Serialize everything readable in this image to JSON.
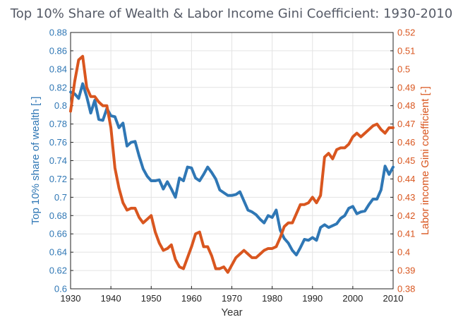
{
  "chart_data": {
    "type": "line",
    "title": "Top 10% Share of Wealth & Labor Income Gini Coefficient: 1930-2010",
    "xlabel": "Year",
    "ylabel_left": "Top 10% share of wealth [-]",
    "ylabel_right": "Labor income Gini coefficient [-]",
    "xlim": [
      1930,
      2010
    ],
    "ylim_left": [
      0.6,
      0.88
    ],
    "ylim_right": [
      0.38,
      0.52
    ],
    "grid": true,
    "x_ticks": [
      "1930",
      "1940",
      "1950",
      "1960",
      "1970",
      "1980",
      "1990",
      "2000",
      "2010"
    ],
    "y_ticks_left": [
      "0.6",
      "0.62",
      "0.64",
      "0.66",
      "0.68",
      "0.7",
      "0.72",
      "0.74",
      "0.76",
      "0.78",
      "0.8",
      "0.82",
      "0.84",
      "0.86",
      "0.88"
    ],
    "y_ticks_right": [
      "0.38",
      "0.39",
      "0.4",
      "0.41",
      "0.42",
      "0.43",
      "0.44",
      "0.45",
      "0.46",
      "0.47",
      "0.48",
      "0.49",
      "0.5",
      "0.51",
      "0.52"
    ],
    "colors": {
      "left_series": "#2f77b5",
      "right_series": "#d9561f",
      "grid": "#e3e3e3"
    },
    "series": [
      {
        "axis": "left",
        "x": [
          1930,
          1931,
          1932,
          1933,
          1934,
          1935,
          1936,
          1937,
          1938,
          1939,
          1940,
          1941,
          1942,
          1943,
          1944,
          1945,
          1946,
          1947,
          1948,
          1949,
          1950,
          1951,
          1952,
          1953,
          1954,
          1955,
          1956,
          1957,
          1958,
          1959,
          1960,
          1961,
          1962,
          1963,
          1964,
          1965,
          1966,
          1967,
          1968,
          1969,
          1970,
          1971,
          1972,
          1973,
          1974,
          1975,
          1976,
          1977,
          1978,
          1979,
          1980,
          1981,
          1982,
          1983,
          1984,
          1985,
          1986,
          1987,
          1988,
          1989,
          1990,
          1991,
          1992,
          1993,
          1994,
          1995,
          1996,
          1997,
          1998,
          1999,
          2000,
          2001,
          2002,
          2003,
          2004,
          2005,
          2006,
          2007,
          2008,
          2009,
          2010
        ],
        "y": [
          0.815,
          0.813,
          0.808,
          0.824,
          0.81,
          0.792,
          0.806,
          0.785,
          0.784,
          0.797,
          0.789,
          0.788,
          0.776,
          0.781,
          0.756,
          0.76,
          0.761,
          0.745,
          0.731,
          0.723,
          0.718,
          0.718,
          0.719,
          0.709,
          0.717,
          0.709,
          0.7,
          0.721,
          0.718,
          0.733,
          0.732,
          0.721,
          0.718,
          0.725,
          0.733,
          0.727,
          0.72,
          0.708,
          0.705,
          0.702,
          0.702,
          0.703,
          0.706,
          0.696,
          0.686,
          0.684,
          0.681,
          0.676,
          0.672,
          0.68,
          0.678,
          0.686,
          0.664,
          0.655,
          0.65,
          0.642,
          0.637,
          0.645,
          0.654,
          0.653,
          0.656,
          0.653,
          0.667,
          0.67,
          0.667,
          0.669,
          0.671,
          0.677,
          0.68,
          0.688,
          0.69,
          0.682,
          0.684,
          0.685,
          0.692,
          0.698,
          0.698,
          0.708,
          0.734,
          0.725,
          0.733
        ]
      },
      {
        "axis": "right",
        "x": [
          1930,
          1931,
          1932,
          1933,
          1934,
          1935,
          1936,
          1937,
          1938,
          1939,
          1940,
          1941,
          1942,
          1943,
          1944,
          1945,
          1946,
          1947,
          1948,
          1949,
          1950,
          1951,
          1952,
          1953,
          1954,
          1955,
          1956,
          1957,
          1958,
          1959,
          1960,
          1961,
          1962,
          1963,
          1964,
          1965,
          1966,
          1967,
          1968,
          1969,
          1970,
          1971,
          1972,
          1973,
          1974,
          1975,
          1976,
          1977,
          1978,
          1979,
          1980,
          1981,
          1982,
          1983,
          1984,
          1985,
          1986,
          1987,
          1988,
          1989,
          1990,
          1991,
          1992,
          1993,
          1994,
          1995,
          1996,
          1997,
          1998,
          1999,
          2000,
          2001,
          2002,
          2003,
          2004,
          2005,
          2006,
          2007,
          2008,
          2009,
          2010
        ],
        "y": [
          0.477,
          0.493,
          0.505,
          0.507,
          0.49,
          0.485,
          0.485,
          0.482,
          0.48,
          0.48,
          0.468,
          0.446,
          0.435,
          0.427,
          0.423,
          0.424,
          0.424,
          0.419,
          0.416,
          0.418,
          0.42,
          0.411,
          0.405,
          0.401,
          0.402,
          0.404,
          0.396,
          0.392,
          0.391,
          0.397,
          0.403,
          0.41,
          0.411,
          0.403,
          0.403,
          0.398,
          0.391,
          0.391,
          0.392,
          0.389,
          0.393,
          0.397,
          0.399,
          0.401,
          0.399,
          0.397,
          0.397,
          0.399,
          0.401,
          0.402,
          0.402,
          0.403,
          0.408,
          0.414,
          0.416,
          0.416,
          0.421,
          0.426,
          0.426,
          0.427,
          0.43,
          0.427,
          0.431,
          0.452,
          0.454,
          0.451,
          0.456,
          0.457,
          0.457,
          0.459,
          0.463,
          0.465,
          0.463,
          0.465,
          0.467,
          0.469,
          0.47,
          0.467,
          0.465,
          0.468,
          0.468
        ]
      }
    ]
  }
}
